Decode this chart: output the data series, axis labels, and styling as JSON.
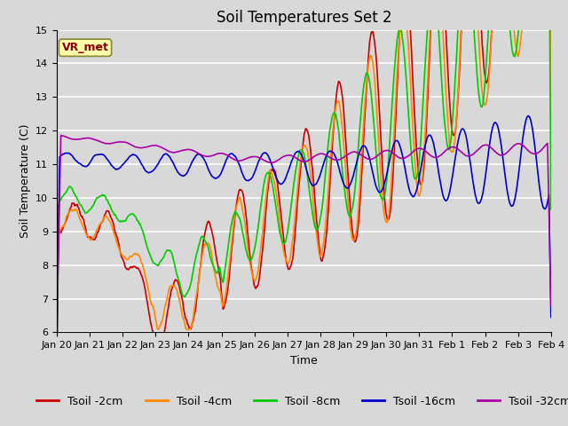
{
  "title": "Soil Temperatures Set 2",
  "xlabel": "Time",
  "ylabel": "Soil Temperature (C)",
  "ylim": [
    6.0,
    15.0
  ],
  "yticks": [
    6.0,
    7.0,
    8.0,
    9.0,
    10.0,
    11.0,
    12.0,
    13.0,
    14.0,
    15.0
  ],
  "background_color": "#d8d8d8",
  "plot_bg_color": "#d8d8d8",
  "grid_color": "#ffffff",
  "series_colors": {
    "Tsoil -2cm": "#cc0000",
    "Tsoil -4cm": "#ff8800",
    "Tsoil -8cm": "#00cc00",
    "Tsoil -16cm": "#0000cc",
    "Tsoil -32cm": "#aa00aa"
  },
  "annotation_text": "VR_met",
  "annotation_color": "#8b0000",
  "annotation_bg": "#ffffaa",
  "xtick_labels": [
    "Jan 20",
    "Jan 21",
    "Jan 22",
    "Jan 23",
    "Jan 24",
    "Jan 25",
    "Jan 26",
    "Jan 27",
    "Jan 28",
    "Jan 29",
    "Jan 30",
    "Jan 31",
    "Feb 1",
    "Feb 2",
    "Feb 3",
    "Feb 4"
  ],
  "title_fontsize": 12,
  "axis_label_fontsize": 9,
  "tick_fontsize": 8,
  "legend_fontsize": 9,
  "linewidth": 1.2
}
